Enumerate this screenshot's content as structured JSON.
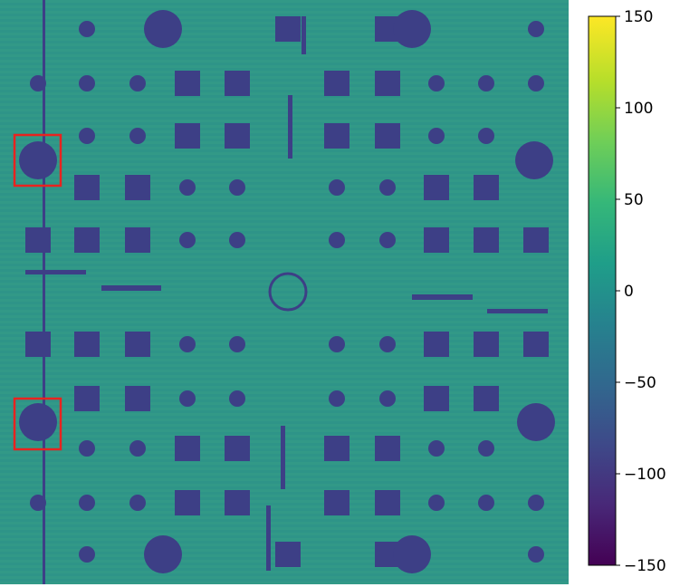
{
  "chart_data": {
    "type": "heatmap",
    "title": "",
    "xlabel": "",
    "ylabel": "",
    "colormap": "viridis",
    "colorbar": {
      "range": [
        -150,
        150
      ],
      "ticks": [
        150,
        100,
        50,
        0,
        -50,
        -100,
        -150
      ],
      "tick_labels": [
        "150",
        "100",
        "50",
        "0",
        "−50",
        "−100",
        "−150"
      ]
    },
    "background_value": 20,
    "feature_value": -100,
    "annotations": [
      {
        "type": "rectangle",
        "color": "#e8231f",
        "target": "large circle, left column, upper"
      },
      {
        "type": "rectangle",
        "color": "#e8231f",
        "target": "large circle, left column, lower"
      }
    ]
  },
  "colors": {
    "background": "#2e9488",
    "feature": "#3d3f86",
    "highlight_box": "#e8231f"
  }
}
